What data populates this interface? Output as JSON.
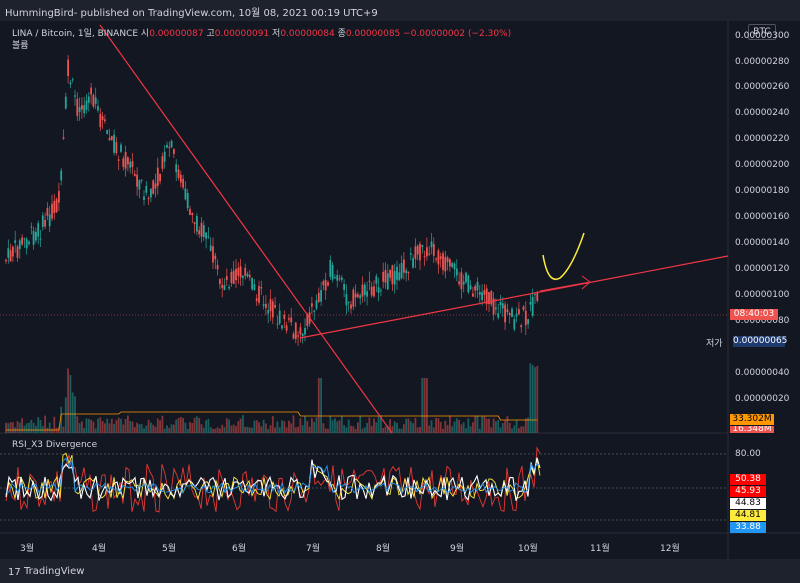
{
  "header": {
    "text": "HummingBird- published on TradingView.com, 10월 08, 2021 00:19 UTC+9"
  },
  "symbol": {
    "name": "LINA / Bitcoin, 1일, BINANCE",
    "open_label": "시",
    "open": "0.00000087",
    "high_label": "고",
    "high": "0.00000091",
    "low_label": "저",
    "low": "0.00000084",
    "close_label": "종",
    "close": "0.00000085",
    "change": "−0.00000002 (−2.30%)"
  },
  "volume_label": "볼륨",
  "currency_tag": "BTC",
  "price_axis": [
    "0.00000300",
    "0.00000280",
    "0.00000260",
    "0.00000240",
    "0.00000220",
    "0.00000200",
    "0.00000180",
    "0.00000160",
    "0.00000140",
    "0.00000120",
    "0.00000100",
    "0.00000080",
    "0.00000065",
    "0.00000040",
    "0.00000020"
  ],
  "countdown_tag": "08:40:03",
  "low_tag_label": "저가",
  "low_tag_value": "0.00000065",
  "volume_tags": [
    "33.302M",
    "16.348M"
  ],
  "rsi": {
    "title": "RSI_X3 Divergence",
    "top_tick": "80.00",
    "values": [
      "50.38",
      "45.93",
      "44.83",
      "44.81",
      "33.88"
    ],
    "colors": [
      "#ff0000",
      "#ff0000",
      "#ffffff",
      "#ffeb3b",
      "#2196f3"
    ],
    "text_colors": [
      "#ffffff",
      "#ffffff",
      "#000000",
      "#000000",
      "#ffffff"
    ]
  },
  "x_axis": [
    "3월",
    "4월",
    "5월",
    "6월",
    "7월",
    "8월",
    "9월",
    "10월",
    "11월",
    "12월"
  ],
  "footer": {
    "brand": "TradingView",
    "logo": "17"
  },
  "colors": {
    "bull": "#26a69a",
    "bear": "#ef5350",
    "trend": "#f23645",
    "bg": "#131722"
  }
}
